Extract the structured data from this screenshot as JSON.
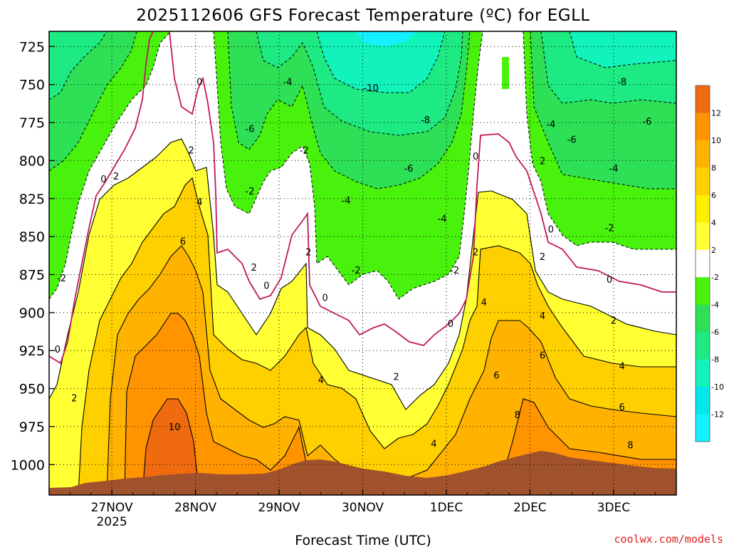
{
  "chart_data": {
    "type": "heatmap",
    "title": "2025112606 GFS Forecast Temperature (ºC) for EGLL",
    "xlabel": "Forecast Time (UTC)",
    "ylabel": "",
    "y_ticks": [
      725,
      750,
      775,
      800,
      825,
      850,
      875,
      900,
      925,
      950,
      975,
      1000
    ],
    "ylim": [
      1020,
      715
    ],
    "y_tick_labels": [
      "725",
      "750",
      "775",
      "800",
      "825",
      "850",
      "875",
      "900",
      "925",
      "950",
      "975",
      "1000"
    ],
    "x_ticks": [
      {
        "day": 27,
        "label": "27NOV",
        "sub": "2025"
      },
      {
        "day": 28,
        "label": "28NOV",
        "sub": ""
      },
      {
        "day": 29,
        "label": "29NOV",
        "sub": ""
      },
      {
        "day": 30,
        "label": "30NOV",
        "sub": ""
      },
      {
        "day": 31,
        "label": "1DEC",
        "sub": ""
      },
      {
        "day": 32,
        "label": "2DEC",
        "sub": ""
      },
      {
        "day": 33,
        "label": "3DEC",
        "sub": ""
      }
    ],
    "xlim": [
      26.25,
      33.75
    ],
    "legend": {
      "position": "right",
      "labels": [
        "12",
        "10",
        "8",
        "6",
        "4",
        "2",
        "-2",
        "-4",
        "-6",
        "-8",
        "-10",
        "-12"
      ],
      "colors": [
        "#f06a10",
        "#ff9400",
        "#ffb300",
        "#ffd000",
        "#ffee00",
        "#ffff33",
        "#ffffff",
        "#49f20c",
        "#2ee056",
        "#1dea82",
        "#12f2bb",
        "#00e8e8",
        "#14f0ff"
      ]
    },
    "temperature_bands": [
      {
        "level": "-10",
        "color": "#12f2bb"
      },
      {
        "level": "-8",
        "color": "#1dea82"
      },
      {
        "level": "-6",
        "color": "#2ee056"
      },
      {
        "level": "-4",
        "color": "#49f20c"
      },
      {
        "level": "-2",
        "color": "#ffffff"
      },
      {
        "level": "0/2",
        "color": "#ffff33"
      },
      {
        "level": "4",
        "color": "#ffd000"
      },
      {
        "level": "6",
        "color": "#ffb300"
      },
      {
        "level": "8",
        "color": "#ff9400"
      },
      {
        "level": "10",
        "color": "#f06a10"
      }
    ],
    "ground_color": "#a0522d",
    "zero_isotherm_color": "#c2185b",
    "contour_labels": [
      {
        "text": "0",
        "x": 26.35,
        "p": 924
      },
      {
        "text": "2",
        "x": 26.55,
        "p": 956
      },
      {
        "text": "-2",
        "x": 26.4,
        "p": 877
      },
      {
        "text": "0",
        "x": 26.9,
        "p": 812
      },
      {
        "text": "2",
        "x": 27.05,
        "p": 810
      },
      {
        "text": "2",
        "x": 27.95,
        "p": 793
      },
      {
        "text": "4",
        "x": 28.05,
        "p": 827
      },
      {
        "text": "6",
        "x": 27.85,
        "p": 853
      },
      {
        "text": "10",
        "x": 27.75,
        "p": 975
      },
      {
        "text": "0",
        "x": 28.05,
        "p": 748
      },
      {
        "text": "-6",
        "x": 28.65,
        "p": 779
      },
      {
        "text": "-4",
        "x": 29.1,
        "p": 748
      },
      {
        "text": "-2",
        "x": 29.3,
        "p": 793
      },
      {
        "text": "-2",
        "x": 28.65,
        "p": 820
      },
      {
        "text": "2",
        "x": 28.7,
        "p": 870
      },
      {
        "text": "0",
        "x": 28.85,
        "p": 882
      },
      {
        "text": "2",
        "x": 29.35,
        "p": 860
      },
      {
        "text": "4",
        "x": 29.5,
        "p": 944
      },
      {
        "text": "0",
        "x": 29.55,
        "p": 890
      },
      {
        "text": "-2",
        "x": 29.92,
        "p": 872
      },
      {
        "text": "-4",
        "x": 29.8,
        "p": 826
      },
      {
        "text": "-10",
        "x": 30.1,
        "p": 752
      },
      {
        "text": "-8",
        "x": 30.75,
        "p": 773
      },
      {
        "text": "-6",
        "x": 30.55,
        "p": 805
      },
      {
        "text": "-4",
        "x": 30.95,
        "p": 838
      },
      {
        "text": "2",
        "x": 30.4,
        "p": 942
      },
      {
        "text": "4",
        "x": 30.85,
        "p": 986
      },
      {
        "text": "-2",
        "x": 31.1,
        "p": 872
      },
      {
        "text": "0",
        "x": 31.05,
        "p": 907
      },
      {
        "text": "0",
        "x": 31.35,
        "p": 797
      },
      {
        "text": "2",
        "x": 31.35,
        "p": 860
      },
      {
        "text": "4",
        "x": 31.45,
        "p": 893
      },
      {
        "text": "6",
        "x": 31.6,
        "p": 941
      },
      {
        "text": "8",
        "x": 31.85,
        "p": 967
      },
      {
        "text": "2",
        "x": 32.15,
        "p": 800
      },
      {
        "text": "-4",
        "x": 32.25,
        "p": 776
      },
      {
        "text": "-6",
        "x": 32.5,
        "p": 786
      },
      {
        "text": "0",
        "x": 32.25,
        "p": 845
      },
      {
        "text": "2",
        "x": 32.15,
        "p": 863
      },
      {
        "text": "4",
        "x": 32.15,
        "p": 902
      },
      {
        "text": "6",
        "x": 32.15,
        "p": 928
      },
      {
        "text": "-8",
        "x": 33.1,
        "p": 748
      },
      {
        "text": "-6",
        "x": 33.4,
        "p": 774
      },
      {
        "text": "-4",
        "x": 33.0,
        "p": 805
      },
      {
        "text": "-2",
        "x": 32.95,
        "p": 844
      },
      {
        "text": "0",
        "x": 32.95,
        "p": 878
      },
      {
        "text": "2",
        "x": 33.0,
        "p": 905
      },
      {
        "text": "4",
        "x": 33.1,
        "p": 935
      },
      {
        "text": "6",
        "x": 33.1,
        "p": 962
      },
      {
        "text": "8",
        "x": 33.2,
        "p": 987
      }
    ]
  },
  "credit": "coolwx.com/models"
}
